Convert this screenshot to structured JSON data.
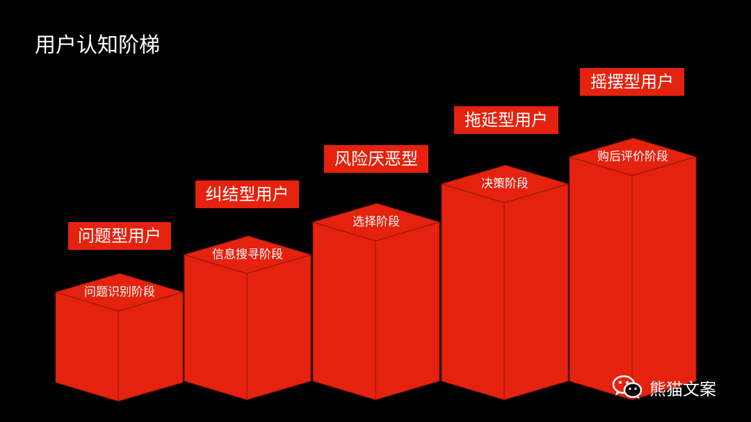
{
  "title": "用户认知阶梯",
  "colors": {
    "background": "#000000",
    "cube_front": "#e5220e",
    "cube_edge": "#8a1406",
    "label_bg": "#e5220e",
    "text": "#ffffff"
  },
  "steps": [
    {
      "stage": "问题识别阶段",
      "user_type": "问题型用户"
    },
    {
      "stage": "信息搜寻阶段",
      "user_type": "纠结型用户"
    },
    {
      "stage": "选择阶段",
      "user_type": "风险厌恶型"
    },
    {
      "stage": "决策阶段",
      "user_type": "拖延型用户"
    },
    {
      "stage": "购后评价阶段",
      "user_type": "摇摆型用户"
    }
  ],
  "watermark": {
    "icon": "wechat-icon",
    "text": "熊猫文案"
  }
}
